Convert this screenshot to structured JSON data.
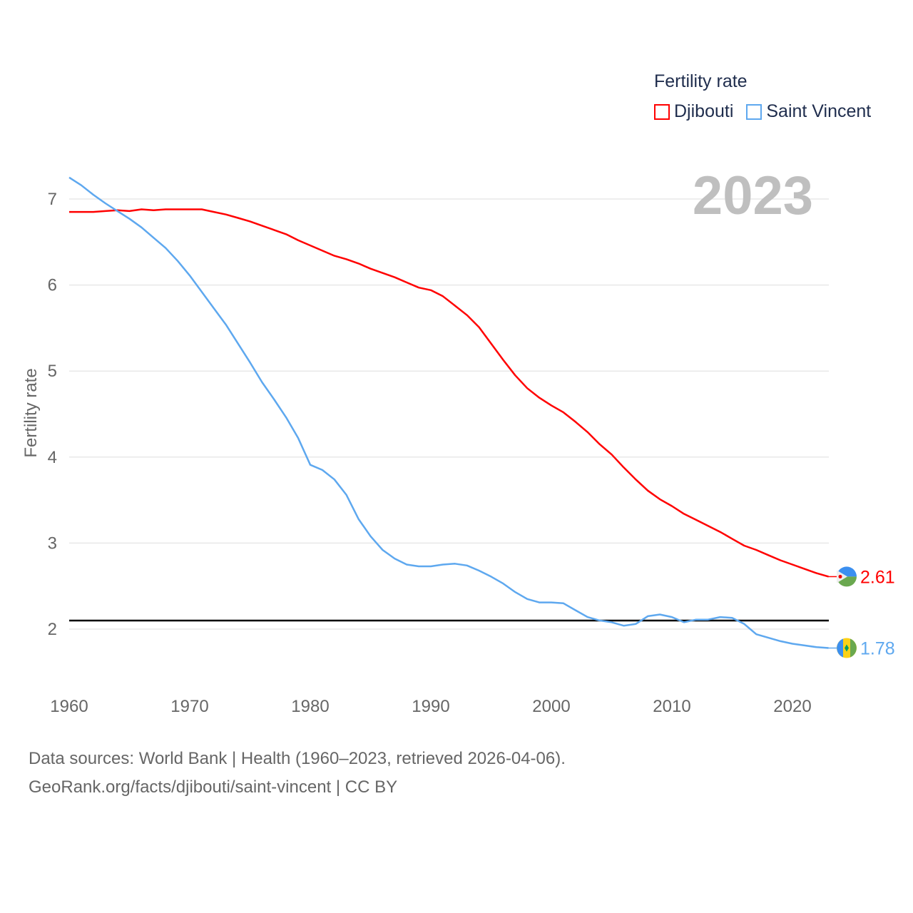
{
  "chart_data": {
    "type": "line",
    "title": "Fertility rate",
    "ylabel": "Fertility rate",
    "xlabel": "",
    "xlim": [
      1960,
      2023
    ],
    "ylim": [
      1.5,
      7.3
    ],
    "x_ticks": [
      1960,
      1970,
      1980,
      1990,
      2000,
      2010,
      2020
    ],
    "y_ticks": [
      2,
      3,
      4,
      5,
      6,
      7
    ],
    "grid": true,
    "legend_placement": "top-right",
    "year_label": "2023",
    "reference_line": {
      "value": 2.1,
      "color": "#000000"
    },
    "x": [
      1960,
      1961,
      1962,
      1963,
      1964,
      1965,
      1966,
      1967,
      1968,
      1969,
      1970,
      1971,
      1972,
      1973,
      1974,
      1975,
      1976,
      1977,
      1978,
      1979,
      1980,
      1981,
      1982,
      1983,
      1984,
      1985,
      1986,
      1987,
      1988,
      1989,
      1990,
      1991,
      1992,
      1993,
      1994,
      1995,
      1996,
      1997,
      1998,
      1999,
      2000,
      2001,
      2002,
      2003,
      2004,
      2005,
      2006,
      2007,
      2008,
      2009,
      2010,
      2011,
      2012,
      2013,
      2014,
      2015,
      2016,
      2017,
      2018,
      2019,
      2020,
      2021,
      2022,
      2023
    ],
    "series": [
      {
        "name": "Djibouti",
        "color": "#ff0000",
        "end_label": "2.61",
        "values": [
          6.85,
          6.85,
          6.85,
          6.86,
          6.87,
          6.86,
          6.88,
          6.87,
          6.88,
          6.88,
          6.88,
          6.88,
          6.85,
          6.82,
          6.78,
          6.74,
          6.69,
          6.64,
          6.59,
          6.52,
          6.46,
          6.4,
          6.34,
          6.3,
          6.25,
          6.19,
          6.14,
          6.09,
          6.03,
          5.97,
          5.94,
          5.87,
          5.76,
          5.65,
          5.51,
          5.32,
          5.13,
          4.95,
          4.8,
          4.69,
          4.6,
          4.52,
          4.41,
          4.29,
          4.15,
          4.03,
          3.88,
          3.74,
          3.61,
          3.51,
          3.43,
          3.34,
          3.27,
          3.2,
          3.13,
          3.05,
          2.97,
          2.92,
          2.86,
          2.8,
          2.75,
          2.7,
          2.65,
          2.61
        ]
      },
      {
        "name": "Saint Vincent",
        "color": "#5ea8ef",
        "end_label": "1.78",
        "values": [
          7.25,
          7.16,
          7.05,
          6.95,
          6.86,
          6.77,
          6.67,
          6.55,
          6.43,
          6.28,
          6.11,
          5.92,
          5.73,
          5.54,
          5.32,
          5.1,
          4.87,
          4.67,
          4.46,
          4.22,
          3.91,
          3.85,
          3.74,
          3.56,
          3.28,
          3.08,
          2.92,
          2.82,
          2.75,
          2.73,
          2.73,
          2.75,
          2.76,
          2.74,
          2.68,
          2.61,
          2.53,
          2.43,
          2.35,
          2.31,
          2.31,
          2.3,
          2.22,
          2.14,
          2.1,
          2.08,
          2.04,
          2.06,
          2.15,
          2.17,
          2.14,
          2.08,
          2.11,
          2.11,
          2.14,
          2.13,
          2.06,
          1.94,
          1.9,
          1.86,
          1.83,
          1.81,
          1.79,
          1.78
        ]
      }
    ]
  },
  "legend": {
    "title": "Fertility rate",
    "items": [
      "Djibouti",
      "Saint Vincent"
    ]
  },
  "source": {
    "line1": "Data sources: World Bank | Health (1960–2023, retrieved 2026-04-06).",
    "line2": "GeoRank.org/facts/djibouti/saint-vincent | CC BY"
  }
}
